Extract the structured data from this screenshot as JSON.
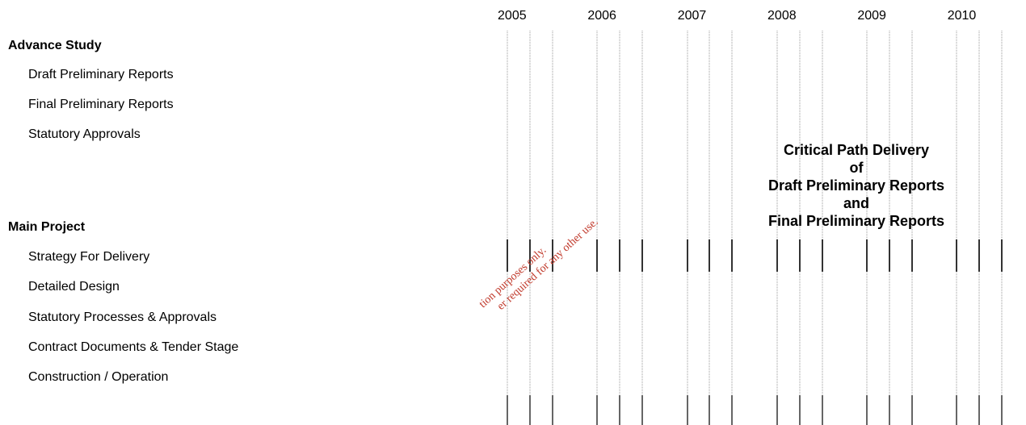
{
  "chart_data": {
    "type": "gantt",
    "years": [
      "2005",
      "2006",
      "2007",
      "2008",
      "2009",
      "2010"
    ],
    "groups": [
      {
        "name": "Advance Study",
        "tasks": [
          "Draft Preliminary Reports",
          "Final Preliminary Reports",
          "Statutory Approvals"
        ]
      },
      {
        "name": "Main Project",
        "tasks": [
          "Strategy For Delivery",
          "Detailed Design",
          "Statutory Processes & Approvals",
          "Contract Documents & Tender Stage",
          "Construction / Operation"
        ]
      }
    ],
    "annotation": [
      "Critical Path Delivery",
      "of",
      "Draft Preliminary Reports",
      "and",
      "Final Preliminary Reports"
    ],
    "grid": true
  },
  "watermark": {
    "line1": "tion purposes only.",
    "line2": "er required for any other use."
  }
}
